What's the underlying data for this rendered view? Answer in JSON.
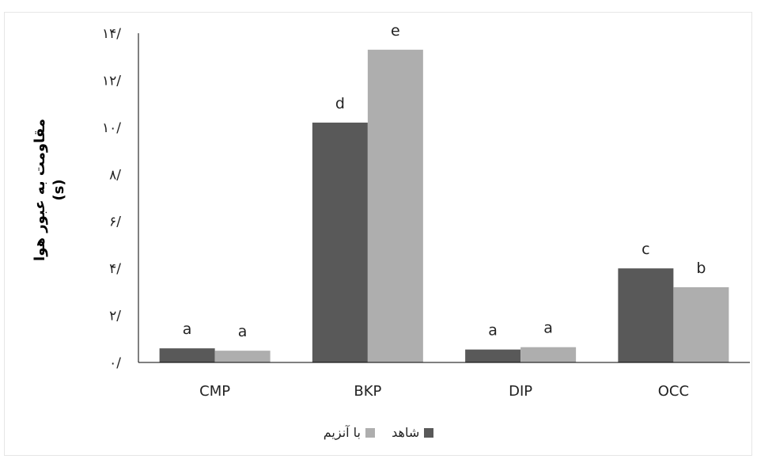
{
  "chart_data": {
    "type": "bar",
    "categories": [
      "CMP",
      "BKP",
      "DIP",
      "OCC"
    ],
    "series": [
      {
        "name": "شاهد",
        "values": [
          0.6,
          10.2,
          0.55,
          4.0
        ],
        "labels": [
          "a",
          "d",
          "a",
          "c"
        ],
        "color": "#595959"
      },
      {
        "name": "با آنزیم",
        "values": [
          0.5,
          13.3,
          0.65,
          3.2
        ],
        "labels": [
          "a",
          "e",
          "a",
          "b"
        ],
        "color": "#aeaeae"
      }
    ],
    "ylabel_lines": [
      "مقاومت به عبور هوا",
      "(s)"
    ],
    "ylim": [
      0,
      14
    ],
    "yticks": [
      0,
      2,
      4,
      6,
      8,
      10,
      12,
      14
    ],
    "ytick_labels": [
      "٠/",
      "٢/",
      "۴/",
      "۶/",
      "٨/",
      "١٠/",
      "١٢/",
      "١۴/"
    ],
    "grid": false,
    "legend_position": "bottom"
  }
}
